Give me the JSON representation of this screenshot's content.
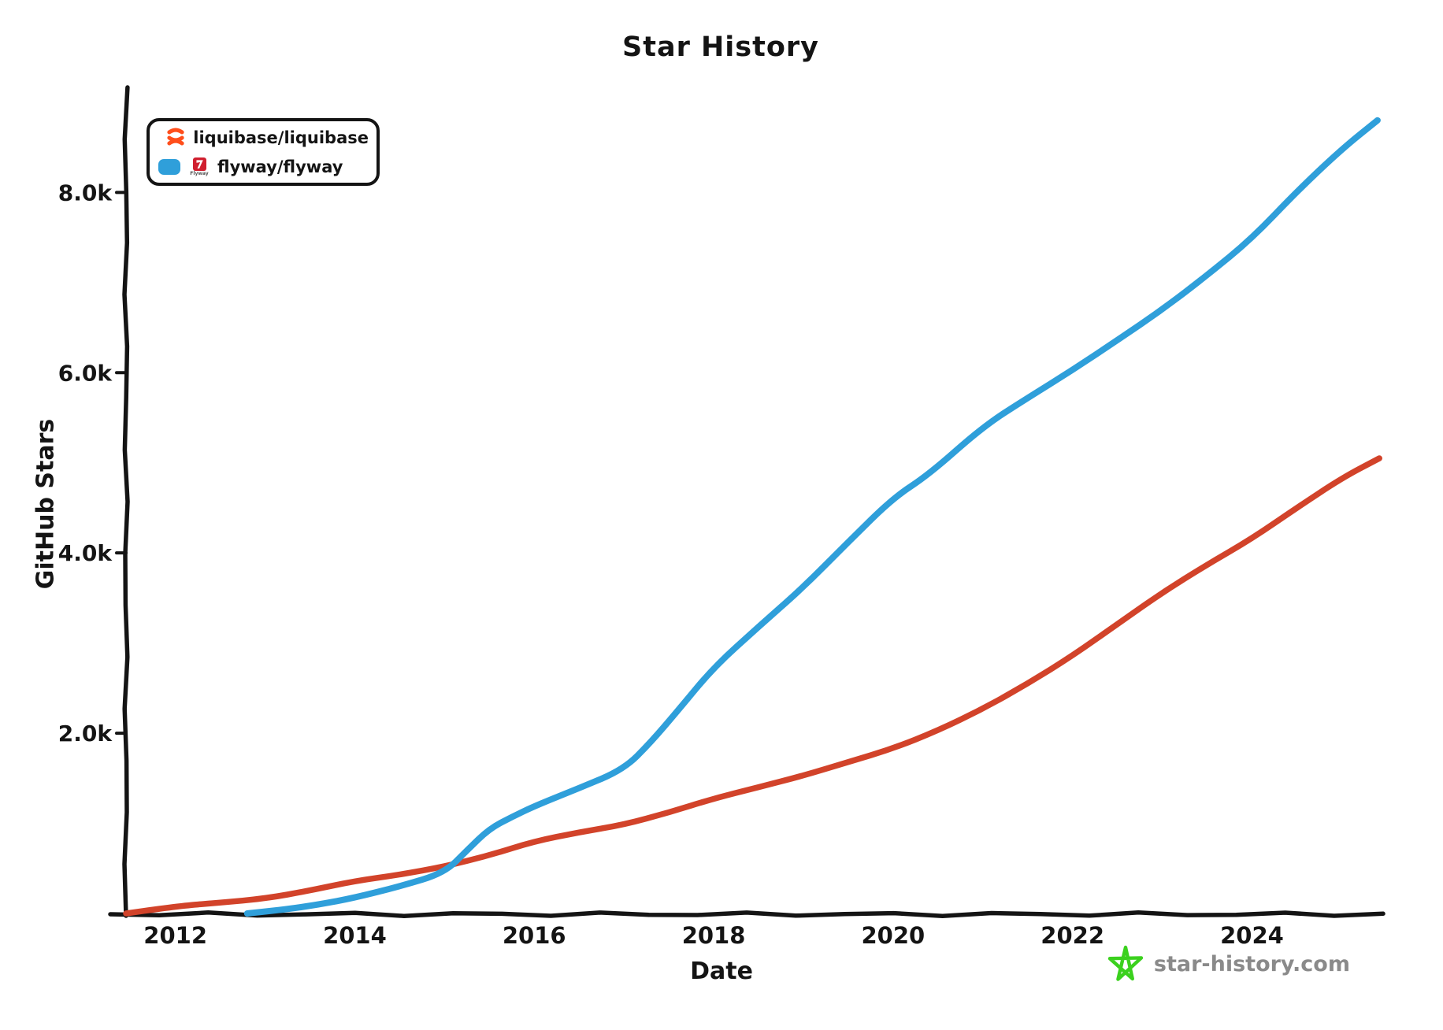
{
  "title": "Star History",
  "axes": {
    "x_label": "Date",
    "y_label": "GitHub Stars"
  },
  "legend": {
    "entries": [
      {
        "repo": "liquibase/liquibase",
        "color": "#d2432a",
        "logo_icon": "liquibase-coil-logo",
        "logo_color": "#ff4e1b"
      },
      {
        "repo": "flyway/flyway",
        "color": "#2f9fda",
        "logo_icon": "flyway-arrow-logo",
        "logo_color": "#d01f2f",
        "logo_caption": "Flyway"
      }
    ]
  },
  "watermark": {
    "icon": "star-doodle-icon",
    "icon_color": "#3bd11e",
    "text": "star-history.com",
    "text_color": "#8a8a8a"
  },
  "colors": {
    "axis": "#141414",
    "background": "#ffffff"
  },
  "chart_data": {
    "type": "line",
    "title": "Star History",
    "xlabel": "Date",
    "ylabel": "GitHub Stars",
    "x_range": [
      2011.45,
      2025.55
    ],
    "y_range": [
      0,
      9130
    ],
    "grid": false,
    "legend_position": "top-left",
    "x_ticks": [
      {
        "value": 2012,
        "label": "2012"
      },
      {
        "value": 2014,
        "label": "2014"
      },
      {
        "value": 2016,
        "label": "2016"
      },
      {
        "value": 2018,
        "label": "2018"
      },
      {
        "value": 2020,
        "label": "2020"
      },
      {
        "value": 2022,
        "label": "2022"
      },
      {
        "value": 2024,
        "label": "2024"
      }
    ],
    "y_ticks": [
      {
        "value": 2000,
        "label": "2.0k"
      },
      {
        "value": 4000,
        "label": "4.0k"
      },
      {
        "value": 6000,
        "label": "6.0k"
      },
      {
        "value": 8000,
        "label": "8.0k"
      }
    ],
    "series": [
      {
        "name": "liquibase/liquibase",
        "color": "#d2432a",
        "stroke_width": 7.5,
        "points": [
          [
            2011.45,
            0
          ],
          [
            2012.0,
            80
          ],
          [
            2012.5,
            120
          ],
          [
            2013.0,
            165
          ],
          [
            2013.5,
            255
          ],
          [
            2014.0,
            360
          ],
          [
            2014.5,
            430
          ],
          [
            2015.0,
            520
          ],
          [
            2015.5,
            645
          ],
          [
            2016.0,
            800
          ],
          [
            2016.5,
            900
          ],
          [
            2017.0,
            985
          ],
          [
            2017.5,
            1120
          ],
          [
            2018.0,
            1275
          ],
          [
            2018.5,
            1400
          ],
          [
            2019.0,
            1530
          ],
          [
            2019.5,
            1680
          ],
          [
            2020.0,
            1830
          ],
          [
            2020.5,
            2030
          ],
          [
            2021.0,
            2270
          ],
          [
            2021.5,
            2550
          ],
          [
            2022.0,
            2860
          ],
          [
            2022.5,
            3210
          ],
          [
            2023.0,
            3560
          ],
          [
            2023.5,
            3870
          ],
          [
            2024.0,
            4160
          ],
          [
            2024.5,
            4500
          ],
          [
            2025.0,
            4830
          ],
          [
            2025.42,
            5050
          ]
        ]
      },
      {
        "name": "flyway/flyway",
        "color": "#2f9fda",
        "stroke_width": 8,
        "points": [
          [
            2012.8,
            0
          ],
          [
            2013.2,
            40
          ],
          [
            2013.6,
            100
          ],
          [
            2014.0,
            175
          ],
          [
            2014.5,
            300
          ],
          [
            2015.0,
            450
          ],
          [
            2015.25,
            700
          ],
          [
            2015.5,
            940
          ],
          [
            2015.75,
            1070
          ],
          [
            2016.0,
            1190
          ],
          [
            2016.5,
            1390
          ],
          [
            2017.0,
            1600
          ],
          [
            2017.3,
            1900
          ],
          [
            2017.6,
            2250
          ],
          [
            2018.0,
            2730
          ],
          [
            2018.5,
            3180
          ],
          [
            2019.0,
            3620
          ],
          [
            2019.5,
            4120
          ],
          [
            2020.0,
            4610
          ],
          [
            2020.4,
            4870
          ],
          [
            2021.0,
            5400
          ],
          [
            2021.5,
            5720
          ],
          [
            2022.0,
            6030
          ],
          [
            2022.5,
            6360
          ],
          [
            2023.0,
            6700
          ],
          [
            2023.5,
            7080
          ],
          [
            2024.0,
            7490
          ],
          [
            2024.5,
            8010
          ],
          [
            2025.0,
            8480
          ],
          [
            2025.4,
            8800
          ]
        ]
      }
    ]
  }
}
